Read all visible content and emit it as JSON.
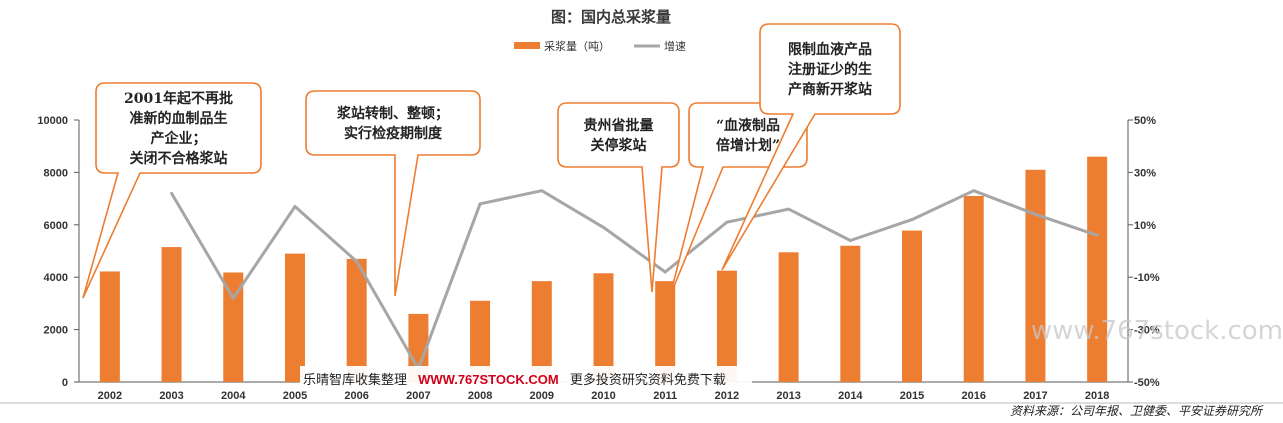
{
  "chart_data": {
    "type": "bar",
    "title": "图：国内总采浆量",
    "categories": [
      "2002",
      "2003",
      "2004",
      "2005",
      "2006",
      "2007",
      "2008",
      "2009",
      "2010",
      "2011",
      "2012",
      "2013",
      "2014",
      "2015",
      "2016",
      "2017",
      "2018"
    ],
    "series": [
      {
        "name": "采浆量（吨）",
        "type": "bar",
        "axis": "left",
        "color": "#ED7D31",
        "values": [
          4220,
          5150,
          4180,
          4900,
          4700,
          2600,
          3100,
          3850,
          4150,
          3850,
          4250,
          4950,
          5200,
          5780,
          7100,
          8100,
          8600
        ]
      },
      {
        "name": "增速",
        "type": "line",
        "axis": "right",
        "color": "#A6A6A6",
        "values": [
          null,
          22,
          -18,
          17,
          -4,
          -45,
          18,
          23,
          9,
          -8,
          11,
          16,
          4,
          12,
          23,
          14,
          6
        ]
      }
    ],
    "ylim_left": [
      0,
      10000
    ],
    "yticks_left": [
      "0",
      "2000",
      "4000",
      "6000",
      "8000",
      "10000"
    ],
    "ylim_right": [
      -50,
      50
    ],
    "yticks_right": [
      "-50%",
      "-30%",
      "-10%",
      "10%",
      "30%",
      "50%"
    ],
    "grid": false,
    "legend_position": "top-center",
    "annotations": [
      {
        "lines": [
          "2001年起不再批",
          "准新的血制品生",
          "产企业；",
          "关闭不合格浆站"
        ],
        "points_to": "2002"
      },
      {
        "lines": [
          "浆站转制、整顿；",
          "实行检疫期制度"
        ],
        "points_to": "2007"
      },
      {
        "lines": [
          "贵州省批量",
          "关停浆站"
        ],
        "points_to": "2011"
      },
      {
        "lines": [
          "“血液制品",
          "倍增计划”"
        ],
        "points_to": "2011-2012"
      },
      {
        "lines": [
          "限制血液产品",
          "注册证少的生",
          "产商新开浆站"
        ],
        "points_to": "2012"
      }
    ],
    "source": "资料来源：公司年报、卫健委、平安证券研究所"
  },
  "watermark": {
    "banner_prefix": "乐晴智库收集整理",
    "banner_url": "WWW.767STOCK.COM",
    "banner_suffix": "更多投资研究资料免费下载",
    "side": "www.767stock.com"
  },
  "colors": {
    "bar": "#ED7D31",
    "line": "#A6A6A6",
    "callout_border": "#ED7D31"
  }
}
